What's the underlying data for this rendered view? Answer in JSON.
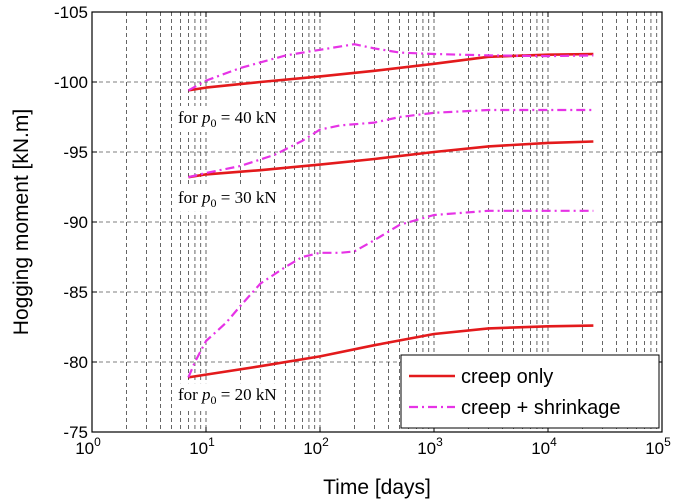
{
  "chart_data": {
    "type": "line",
    "title": "",
    "xlabel": "Time [days]",
    "ylabel": "Hogging moment [kN.m]",
    "x_scale": "log",
    "xlim": [
      1,
      100000
    ],
    "ylim": [
      -75,
      -105
    ],
    "y_reversed": true,
    "grid": true,
    "x_ticks": [
      {
        "value": 1,
        "base": "10",
        "exp": "0"
      },
      {
        "value": 10,
        "base": "10",
        "exp": "1"
      },
      {
        "value": 100,
        "base": "10",
        "exp": "2"
      },
      {
        "value": 1000,
        "base": "10",
        "exp": "3"
      },
      {
        "value": 10000,
        "base": "10",
        "exp": "4"
      },
      {
        "value": 100000,
        "base": "10",
        "exp": "5"
      }
    ],
    "y_ticks": [
      {
        "value": -75,
        "label": "-75"
      },
      {
        "value": -80,
        "label": "-80"
      },
      {
        "value": -85,
        "label": "-85"
      },
      {
        "value": -90,
        "label": "-90"
      },
      {
        "value": -95,
        "label": "-95"
      },
      {
        "value": -100,
        "label": "-100"
      },
      {
        "value": -105,
        "label": "-105"
      }
    ],
    "legend": {
      "position": "bottom-right",
      "entries": [
        {
          "label": "creep only",
          "color": "#e31a1c",
          "style": "solid"
        },
        {
          "label": "creep + shrinkage",
          "color": "#e633e6",
          "style": "dashdot"
        }
      ]
    },
    "annotations": [
      {
        "prefix": "for ",
        "var": "p",
        "sub": "0",
        "rest": " = 40 kN",
        "x": 8,
        "y": -97.5
      },
      {
        "prefix": "for ",
        "var": "p",
        "sub": "0",
        "rest": " = 30 kN",
        "x": 8,
        "y": -91.8
      },
      {
        "prefix": "for ",
        "var": "p",
        "sub": "0",
        "rest": " = 20 kN",
        "x": 8,
        "y": -77.7
      }
    ],
    "series": [
      {
        "group": "p0 = 40 kN",
        "legend_index": 0,
        "color": "#e31a1c",
        "style": "solid",
        "x": [
          7,
          10,
          30,
          100,
          300,
          1000,
          3000,
          10000,
          25000
        ],
        "y": [
          -99.4,
          -99.6,
          -100.0,
          -100.4,
          -100.8,
          -101.3,
          -101.8,
          -101.95,
          -102.0
        ]
      },
      {
        "group": "p0 = 40 kN",
        "legend_index": 1,
        "color": "#e633e6",
        "style": "dashdot",
        "x": [
          7,
          10,
          20,
          50,
          100,
          200,
          300,
          500,
          1000,
          3000,
          10000,
          25000
        ],
        "y": [
          -99.4,
          -100.1,
          -101.0,
          -101.9,
          -102.3,
          -102.7,
          -102.4,
          -102.1,
          -102.0,
          -101.9,
          -101.85,
          -101.9
        ]
      },
      {
        "group": "p0 = 30 kN",
        "legend_index": 0,
        "color": "#e31a1c",
        "style": "solid",
        "x": [
          7,
          10,
          30,
          100,
          300,
          1000,
          3000,
          10000,
          25000
        ],
        "y": [
          -93.2,
          -93.4,
          -93.7,
          -94.1,
          -94.5,
          -95.0,
          -95.4,
          -95.65,
          -95.75
        ]
      },
      {
        "group": "p0 = 30 kN",
        "legend_index": 1,
        "color": "#e633e6",
        "style": "dashdot",
        "x": [
          7,
          10,
          20,
          40,
          70,
          100,
          150,
          300,
          500,
          1000,
          3000,
          10000,
          25000
        ],
        "y": [
          -93.2,
          -93.5,
          -94.0,
          -94.8,
          -95.8,
          -96.6,
          -96.9,
          -97.1,
          -97.5,
          -97.8,
          -98.0,
          -98.0,
          -98.0
        ]
      },
      {
        "group": "p0 = 20 kN",
        "legend_index": 0,
        "color": "#e31a1c",
        "style": "solid",
        "x": [
          7,
          10,
          30,
          100,
          300,
          1000,
          3000,
          10000,
          25000
        ],
        "y": [
          -78.9,
          -79.1,
          -79.7,
          -80.4,
          -81.2,
          -82.0,
          -82.4,
          -82.55,
          -82.6
        ]
      },
      {
        "group": "p0 = 20 kN",
        "legend_index": 1,
        "color": "#e633e6",
        "style": "dashdot",
        "x": [
          7,
          8,
          10,
          15,
          20,
          30,
          50,
          70,
          100,
          150,
          200,
          300,
          500,
          1000,
          3000,
          10000,
          25000
        ],
        "y": [
          -78.9,
          -80.0,
          -81.5,
          -82.8,
          -84.0,
          -85.6,
          -86.8,
          -87.5,
          -87.8,
          -87.8,
          -87.9,
          -88.7,
          -89.8,
          -90.5,
          -90.8,
          -90.8,
          -90.8
        ]
      }
    ]
  }
}
